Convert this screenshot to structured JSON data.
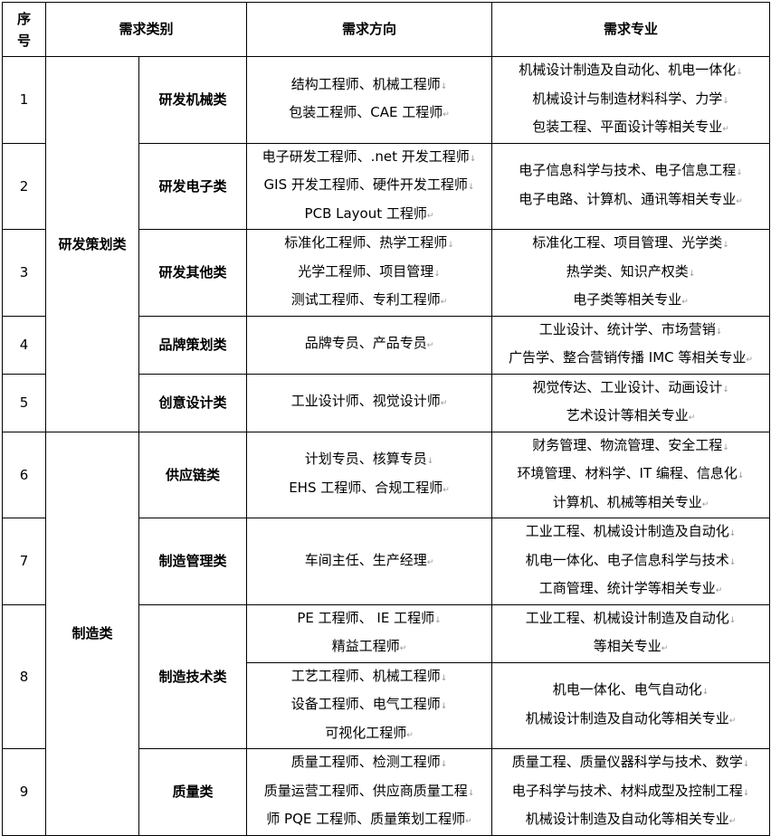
{
  "header": {
    "seq": [
      "序",
      "号"
    ],
    "category": "需求类别",
    "direction": "需求方向",
    "major": "需求专业"
  },
  "groups": [
    {
      "name": "研发策划类"
    },
    {
      "name": "制造类"
    }
  ],
  "rows": [
    {
      "seq": "1",
      "group": 0,
      "sub": "研发机械类",
      "direction": [
        "结构工程师、机械工程师",
        "包装工程师、CAE 工程师"
      ],
      "major": [
        "机械设计制造及自动化、机电一体化",
        "机械设计与制造材料科学、力学",
        "包装工程、平面设计等相关专业"
      ]
    },
    {
      "seq": "2",
      "group": 0,
      "sub": "研发电子类",
      "direction": [
        "电子研发工程师、.net 开发工程师",
        "GIS 开发工程师、硬件开发工程师",
        "PCB Layout 工程师"
      ],
      "major": [
        "电子信息科学与技术、电子信息工程",
        "电子电路、计算机、通讯等相关专业"
      ]
    },
    {
      "seq": "3",
      "group": 0,
      "sub": "研发其他类",
      "direction": [
        "标准化工程师、热学工程师",
        "光学工程师、项目管理",
        "测试工程师、专利工程师"
      ],
      "major": [
        "标准化工程、项目管理、光学类",
        "热学类、知识产权类",
        "电子类等相关专业"
      ]
    },
    {
      "seq": "4",
      "group": 0,
      "sub": "品牌策划类",
      "direction": [
        "品牌专员、产品专员"
      ],
      "major": [
        "工业设计、统计学、市场营销",
        "广告学、整合营销传播 IMC 等相关专业"
      ]
    },
    {
      "seq": "5",
      "group": 0,
      "sub": "创意设计类",
      "direction": [
        "工业设计师、视觉设计师"
      ],
      "major": [
        "视觉传达、工业设计、动画设计",
        "艺术设计等相关专业"
      ]
    },
    {
      "seq": "6",
      "group": 1,
      "sub": "供应链类",
      "direction": [
        "计划专员、核算专员",
        "EHS 工程师、合规工程师"
      ],
      "major": [
        "财务管理、物流管理、安全工程",
        "环境管理、材料学、IT 编程、信息化",
        "计算机、机械等相关专业"
      ]
    },
    {
      "seq": "7",
      "group": 1,
      "sub": "制造管理类",
      "direction": [
        "车间主任、生产经理"
      ],
      "major": [
        "工业工程、机械设计制造及自动化",
        "机电一体化、电子信息科学与技术",
        "工商管理、统计学等相关专业"
      ]
    },
    {
      "seq": "8",
      "group": 1,
      "sub": "制造技术类",
      "direction": [
        "PE 工程师、 IE 工程师",
        "精益工程师"
      ],
      "major": [
        "工业工程、机械设计制造及自动化",
        "等相关专业"
      ]
    },
    {
      "seq": null,
      "group": 1,
      "sub": null,
      "direction": [
        "工艺工程师、机械工程师",
        "设备工程师、电气工程师",
        "可视化工程师"
      ],
      "major": [
        "机电一体化、电气自动化",
        "机械设计制造及自动化等相关专业"
      ]
    },
    {
      "seq": "9",
      "group": 1,
      "sub": "质量类",
      "direction": [
        "质量工程师、检测工程师",
        "质量运营工程师、供应商质量工程",
        "师 PQE 工程师、质量策划工程师"
      ],
      "major": [
        "质量工程、质量仪器科学与技术、数学",
        "电子科学与技术、材料成型及控制工程",
        "机械设计制造及自动化等相关专业"
      ]
    }
  ]
}
